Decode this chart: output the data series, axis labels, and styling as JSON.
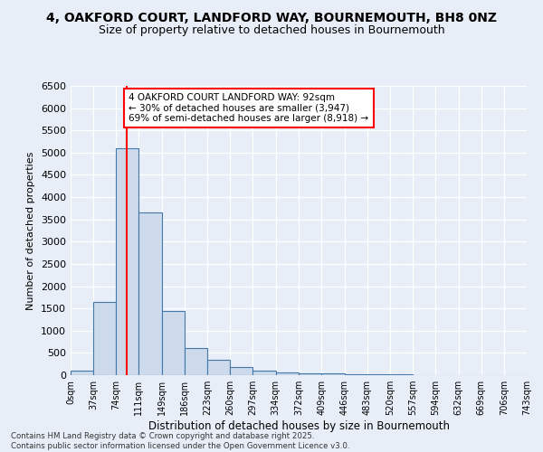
{
  "title": "4, OAKFORD COURT, LANDFORD WAY, BOURNEMOUTH, BH8 0NZ",
  "subtitle": "Size of property relative to detached houses in Bournemouth",
  "xlabel": "Distribution of detached houses by size in Bournemouth",
  "ylabel": "Number of detached properties",
  "bin_edges": [
    0,
    37,
    74,
    111,
    149,
    186,
    223,
    260,
    297,
    334,
    372,
    409,
    446,
    483,
    520,
    557,
    594,
    632,
    669,
    706,
    743
  ],
  "bar_heights": [
    100,
    1650,
    5100,
    3650,
    1450,
    600,
    350,
    180,
    110,
    70,
    50,
    35,
    25,
    18,
    12,
    8,
    5,
    4,
    3,
    2
  ],
  "bar_color": "#ccdaeb",
  "bar_edge_color": "#4477aa",
  "red_line_x": 92,
  "annotation_text": "4 OAKFORD COURT LANDFORD WAY: 92sqm\n← 30% of detached houses are smaller (3,947)\n69% of semi-detached houses are larger (8,918) →",
  "annotation_box_color": "white",
  "annotation_box_edge_color": "red",
  "ylim": [
    0,
    6500
  ],
  "xlim": [
    0,
    743
  ],
  "background_color": "#e8eef8",
  "footer_text": "Contains HM Land Registry data © Crown copyright and database right 2025.\nContains public sector information licensed under the Open Government Licence v3.0.",
  "title_fontsize": 10,
  "subtitle_fontsize": 9,
  "yticks": [
    0,
    500,
    1000,
    1500,
    2000,
    2500,
    3000,
    3500,
    4000,
    4500,
    5000,
    5500,
    6000,
    6500
  ],
  "tick_labels": [
    "0sqm",
    "37sqm",
    "74sqm",
    "111sqm",
    "149sqm",
    "186sqm",
    "223sqm",
    "260sqm",
    "297sqm",
    "334sqm",
    "372sqm",
    "409sqm",
    "446sqm",
    "483sqm",
    "520sqm",
    "557sqm",
    "594sqm",
    "632sqm",
    "669sqm",
    "706sqm",
    "743sqm"
  ]
}
